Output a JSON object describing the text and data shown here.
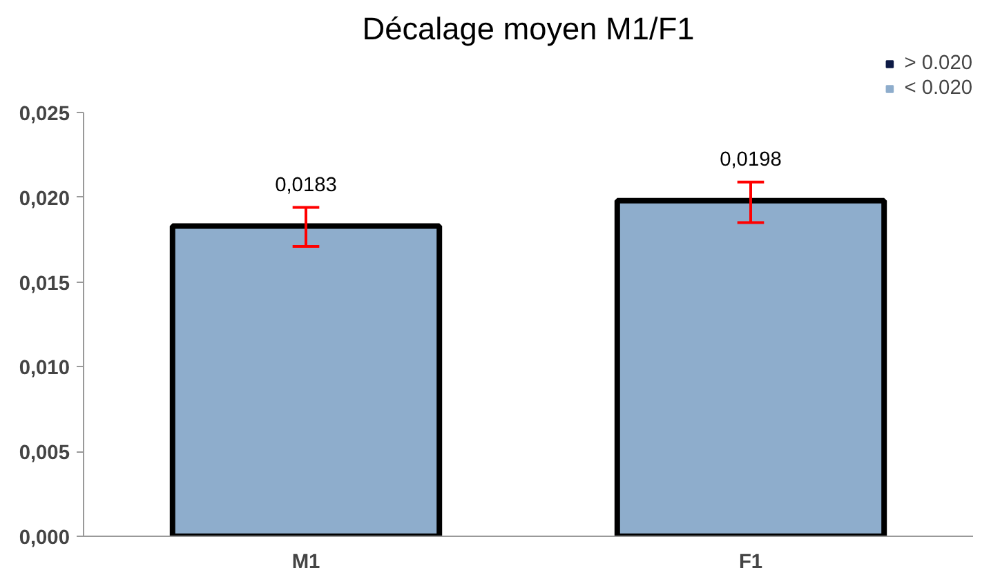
{
  "chart_data": {
    "type": "bar",
    "title": "Décalage moyen M1/F1",
    "categories": [
      "M1",
      "F1"
    ],
    "series": [
      {
        "name": "> 0.020",
        "color": "#0d1b45",
        "values": [
          null,
          null
        ]
      },
      {
        "name": "< 0.020",
        "color": "#8eadcc",
        "values": [
          0.0183,
          0.0198
        ],
        "errors": [
          [
            0.0171,
            0.0194
          ],
          [
            0.0185,
            0.0209
          ]
        ],
        "value_labels": [
          "0,0183",
          "0,0198"
        ]
      }
    ],
    "ylim": [
      0,
      0.025
    ],
    "yticks": [
      {
        "value": 0,
        "label": "0,000"
      },
      {
        "value": 0.005,
        "label": "0,005"
      },
      {
        "value": 0.01,
        "label": "0,010"
      },
      {
        "value": 0.015,
        "label": "0,015"
      },
      {
        "value": 0.02,
        "label": "0,020"
      },
      {
        "value": 0.025,
        "label": "0,025"
      }
    ],
    "grid": false,
    "legend": "top right"
  }
}
